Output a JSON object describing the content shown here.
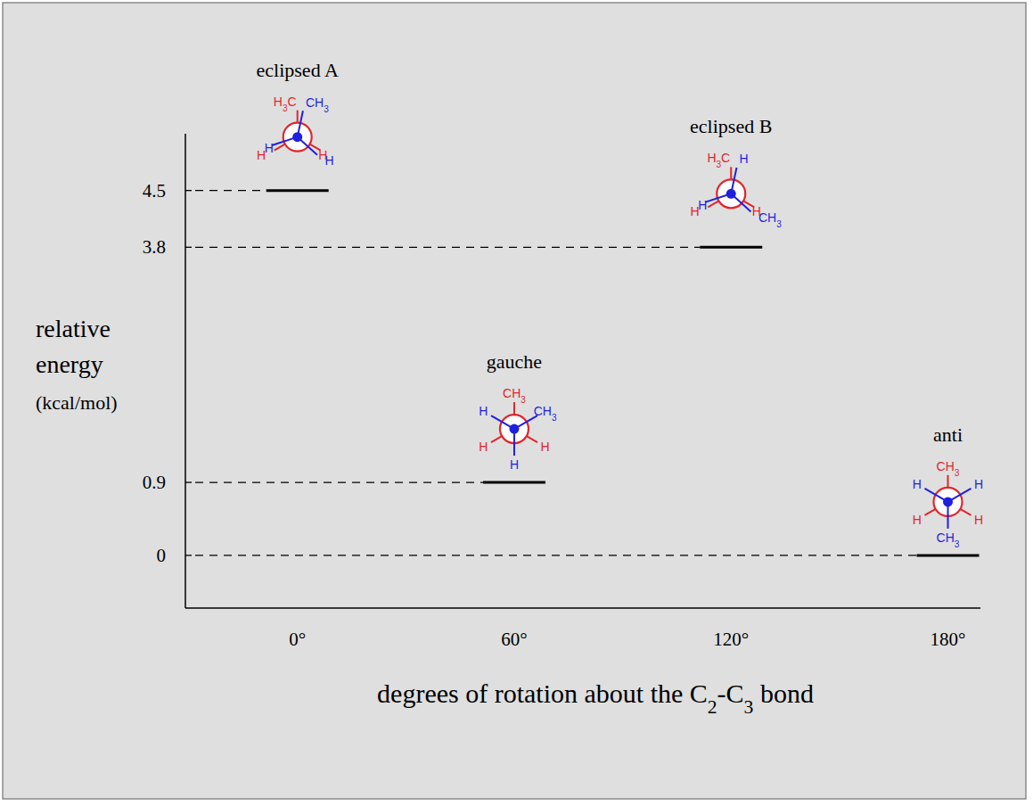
{
  "chart_data": {
    "type": "level",
    "x_label": "degrees of rotation about the C2-C3 bond",
    "y_label": [
      "relative",
      "energy",
      "(kcal/mol)"
    ],
    "x": [
      0,
      60,
      120,
      180
    ],
    "values": [
      4.5,
      0.9,
      3.8,
      0
    ],
    "xlim": [
      -31,
      189
    ],
    "xticks": [
      {
        "value": 0,
        "label": "0°"
      },
      {
        "value": 60,
        "label": "60°"
      },
      {
        "value": 120,
        "label": "120°"
      },
      {
        "value": 180,
        "label": "180°"
      }
    ],
    "ylim": [
      -0.65,
      5.2
    ],
    "yticks": [
      0,
      0.9,
      3.8,
      4.5
    ],
    "grid": false,
    "annotations": [
      {
        "label": "eclipsed A",
        "back": [
          "H3C",
          "H",
          "H"
        ],
        "front": [
          "CH3",
          "H",
          "H"
        ]
      },
      {
        "label": "gauche",
        "back": [
          "CH3",
          "H",
          "H"
        ],
        "front": [
          "CH3",
          "H",
          "H"
        ]
      },
      {
        "label": "eclipsed B",
        "back": [
          "H3C",
          "H",
          "H"
        ],
        "front": [
          "CH3",
          "H",
          "H"
        ]
      },
      {
        "label": "anti",
        "back": [
          "CH3",
          "H",
          "H"
        ],
        "front": [
          "CH3",
          "H",
          "H"
        ]
      }
    ]
  }
}
